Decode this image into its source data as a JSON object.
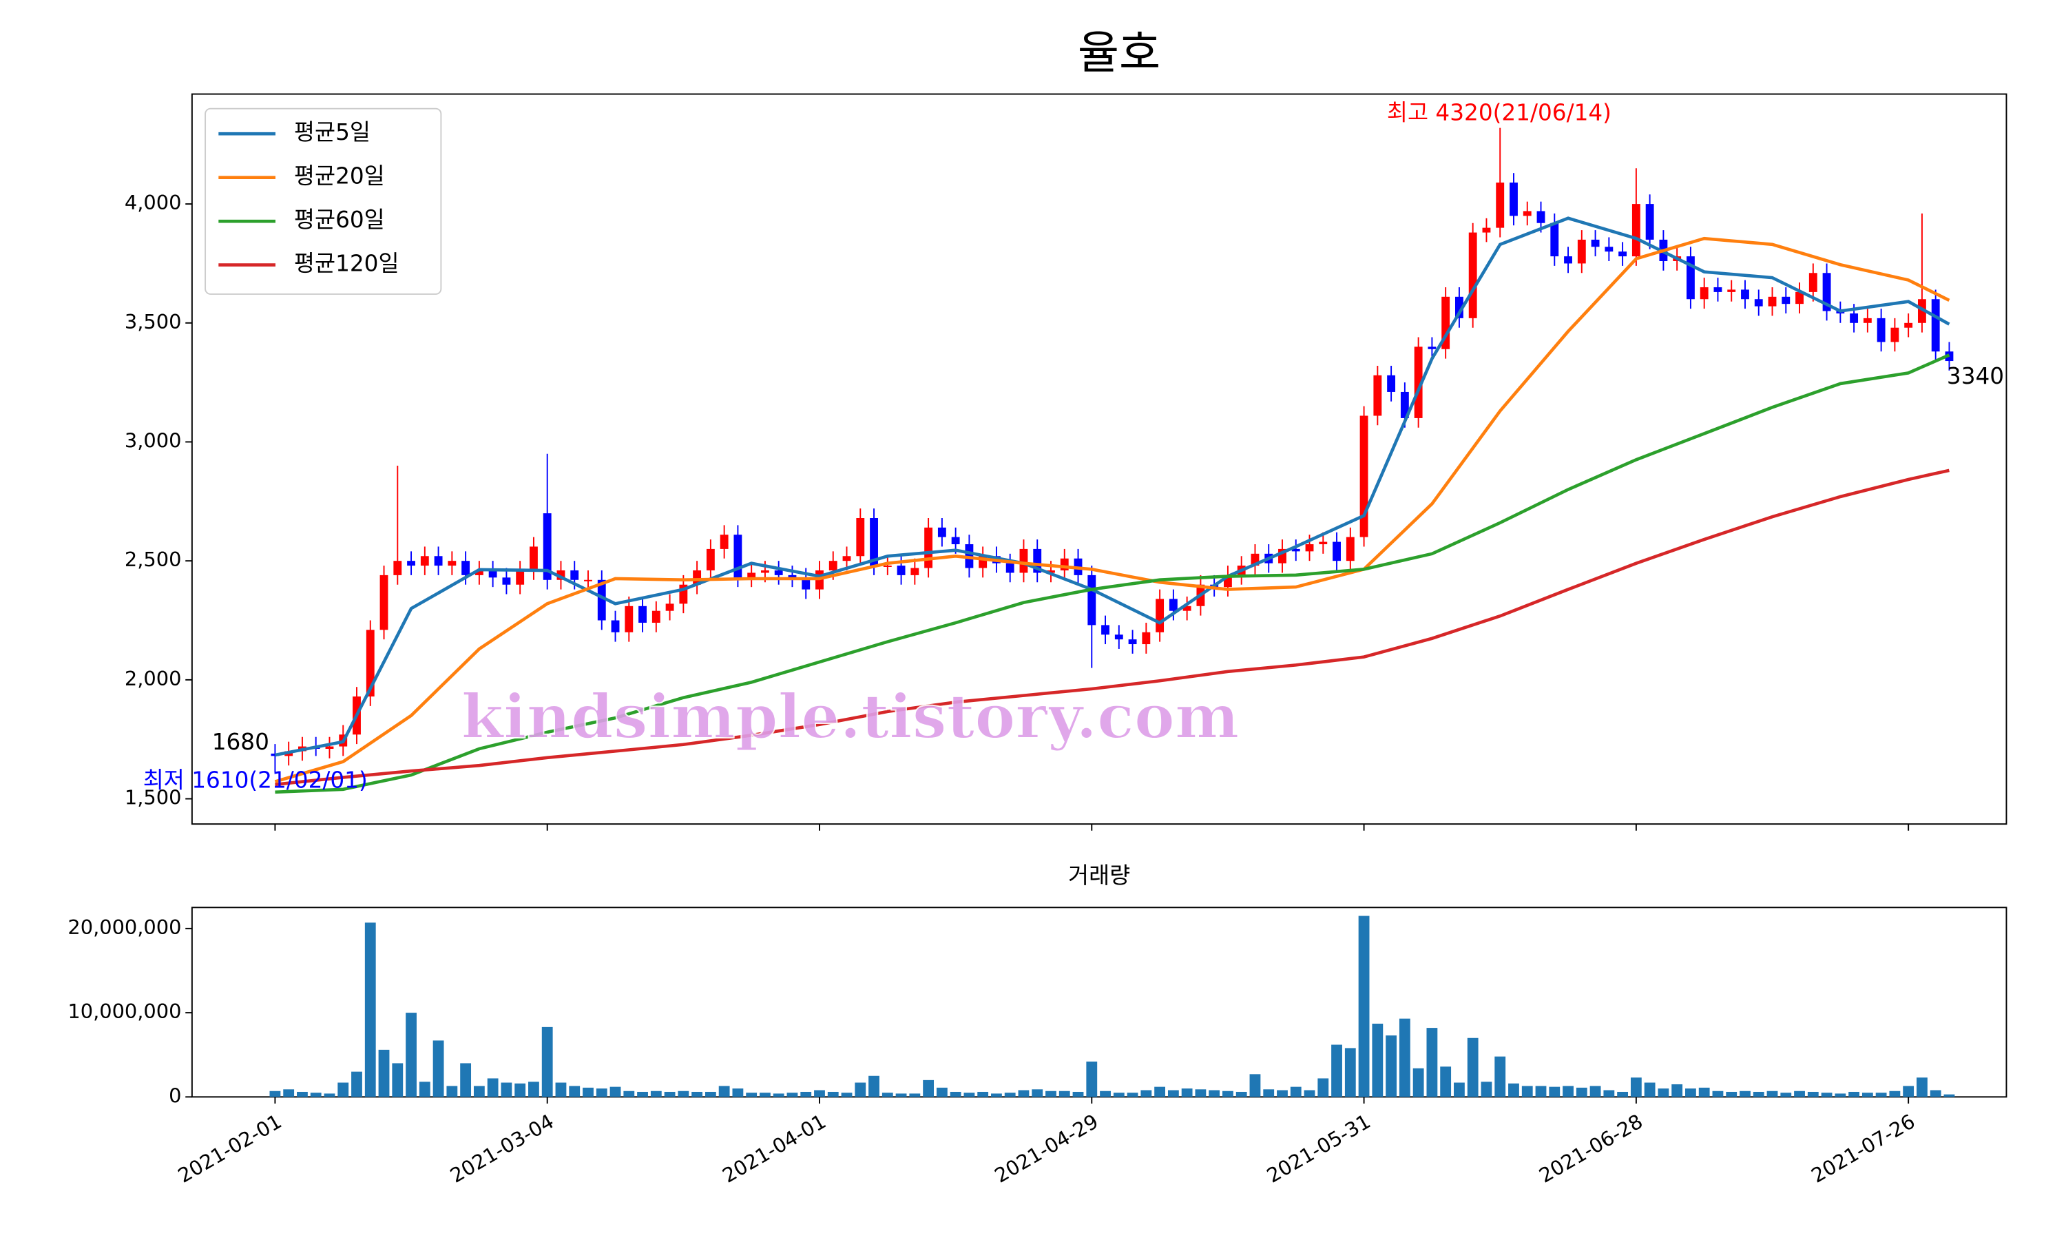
{
  "chart_data": [
    {
      "type": "candlestick",
      "title": "율호",
      "ylim": [
        1394,
        4462
      ],
      "xlim": [
        -6.1,
        127.2
      ],
      "yticks": [
        {
          "value": 1500,
          "label": "1,500"
        },
        {
          "value": 2000,
          "label": "2,000"
        },
        {
          "value": 2500,
          "label": "2,500"
        },
        {
          "value": 3000,
          "label": "3,000"
        },
        {
          "value": 3500,
          "label": "3,500"
        },
        {
          "value": 4000,
          "label": "4,000"
        }
      ],
      "up_color": "#ff0000",
      "down_color": "#0000ff",
      "legend": "upper left",
      "open": [
        1690,
        1680,
        1700,
        1720,
        1710,
        1720,
        1770,
        1930,
        2210,
        2440,
        2500,
        2480,
        2520,
        2480,
        2500,
        2440,
        2460,
        2430,
        2400,
        2460,
        2700,
        2420,
        2460,
        2420,
        2420,
        2250,
        2200,
        2310,
        2240,
        2290,
        2320,
        2400,
        2460,
        2550,
        2610,
        2430,
        2450,
        2460,
        2440,
        2430,
        2380,
        2460,
        2500,
        2520,
        2680,
        2480,
        2480,
        2440,
        2470,
        2640,
        2600,
        2570,
        2470,
        2520,
        2490,
        2450,
        2550,
        2450,
        2460,
        2510,
        2440,
        2230,
        2190,
        2170,
        2150,
        2200,
        2340,
        2290,
        2310,
        2400,
        2390,
        2440,
        2480,
        2530,
        2490,
        2550,
        2540,
        2570,
        2580,
        2500,
        2600,
        3110,
        3280,
        3210,
        3100,
        3400,
        3390,
        3610,
        3520,
        3880,
        3900,
        4090,
        3950,
        3970,
        3920,
        3780,
        3750,
        3850,
        3820,
        3800,
        3780,
        4000,
        3850,
        3760,
        3780,
        3600,
        3650,
        3630,
        3640,
        3600,
        3570,
        3610,
        3580,
        3630,
        3710,
        3550,
        3540,
        3500,
        3520,
        3420,
        3480,
        3500,
        3600,
        3380
      ],
      "high": [
        1730,
        1740,
        1760,
        1760,
        1760,
        1810,
        1970,
        2250,
        2480,
        2900,
        2540,
        2560,
        2560,
        2540,
        2540,
        2500,
        2500,
        2470,
        2500,
        2600,
        2950,
        2500,
        2500,
        2460,
        2460,
        2290,
        2350,
        2350,
        2330,
        2360,
        2440,
        2500,
        2590,
        2650,
        2650,
        2490,
        2500,
        2500,
        2480,
        2470,
        2500,
        2540,
        2560,
        2720,
        2720,
        2520,
        2520,
        2510,
        2680,
        2680,
        2640,
        2610,
        2560,
        2560,
        2530,
        2590,
        2590,
        2500,
        2550,
        2550,
        2480,
        2270,
        2230,
        2210,
        2240,
        2380,
        2380,
        2350,
        2440,
        2440,
        2480,
        2520,
        2570,
        2570,
        2590,
        2590,
        2610,
        2620,
        2620,
        2640,
        3150,
        3320,
        3320,
        3250,
        3440,
        3440,
        3650,
        3650,
        3920,
        3940,
        4320,
        4130,
        4010,
        4010,
        3960,
        3820,
        3890,
        3890,
        3860,
        3840,
        4150,
        4040,
        3890,
        3820,
        3820,
        3690,
        3690,
        3680,
        3680,
        3640,
        3650,
        3650,
        3670,
        3750,
        3750,
        3590,
        3580,
        3560,
        3560,
        3520,
        3540,
        3960,
        3640,
        3420
      ],
      "low": [
        1610,
        1640,
        1660,
        1680,
        1670,
        1680,
        1730,
        1890,
        2170,
        2400,
        2440,
        2440,
        2440,
        2440,
        2400,
        2400,
        2390,
        2360,
        2360,
        2420,
        2380,
        2380,
        2380,
        2380,
        2210,
        2160,
        2160,
        2200,
        2200,
        2250,
        2280,
        2360,
        2420,
        2510,
        2390,
        2390,
        2410,
        2400,
        2390,
        2340,
        2340,
        2420,
        2460,
        2480,
        2440,
        2440,
        2400,
        2400,
        2430,
        2560,
        2530,
        2430,
        2430,
        2450,
        2410,
        2410,
        2410,
        2410,
        2420,
        2400,
        2050,
        2150,
        2130,
        2110,
        2110,
        2160,
        2250,
        2250,
        2270,
        2350,
        2350,
        2400,
        2440,
        2450,
        2450,
        2500,
        2500,
        2530,
        2460,
        2460,
        2560,
        3070,
        3170,
        3060,
        3060,
        3350,
        3350,
        3480,
        3480,
        3840,
        3860,
        3910,
        3910,
        3880,
        3740,
        3710,
        3710,
        3780,
        3760,
        3740,
        3740,
        3810,
        3720,
        3720,
        3560,
        3560,
        3590,
        3590,
        3560,
        3530,
        3530,
        3540,
        3540,
        3590,
        3510,
        3500,
        3460,
        3460,
        3380,
        3380,
        3440,
        3460,
        3340,
        3300
      ],
      "close": [
        1680,
        1700,
        1720,
        1710,
        1720,
        1770,
        1930,
        2210,
        2440,
        2500,
        2480,
        2520,
        2480,
        2500,
        2440,
        2460,
        2430,
        2400,
        2460,
        2560,
        2420,
        2460,
        2420,
        2420,
        2250,
        2200,
        2310,
        2240,
        2290,
        2320,
        2400,
        2460,
        2550,
        2610,
        2430,
        2450,
        2460,
        2440,
        2430,
        2380,
        2460,
        2500,
        2520,
        2680,
        2480,
        2480,
        2440,
        2470,
        2640,
        2600,
        2570,
        2470,
        2520,
        2490,
        2450,
        2550,
        2450,
        2460,
        2510,
        2440,
        2230,
        2190,
        2170,
        2150,
        2200,
        2340,
        2290,
        2310,
        2400,
        2390,
        2440,
        2480,
        2530,
        2490,
        2550,
        2540,
        2570,
        2580,
        2500,
        2600,
        3110,
        3280,
        3210,
        3100,
        3400,
        3390,
        3610,
        3520,
        3880,
        3900,
        4090,
        3950,
        3970,
        3920,
        3780,
        3750,
        3850,
        3820,
        3800,
        3780,
        4000,
        3850,
        3760,
        3780,
        3600,
        3650,
        3630,
        3640,
        3600,
        3570,
        3610,
        3580,
        3630,
        3710,
        3550,
        3540,
        3500,
        3520,
        3420,
        3480,
        3500,
        3600,
        3380,
        3340
      ],
      "series": [
        {
          "name": "평균5일",
          "color": "#1f77b4",
          "x": [
            0,
            5,
            10,
            15,
            20,
            25,
            30,
            35,
            40,
            45,
            50,
            55,
            60,
            65,
            70,
            75,
            80,
            85,
            90,
            95,
            100,
            105,
            110,
            115,
            120,
            123
          ],
          "values": [
            1684,
            1740,
            2300,
            2463,
            2460,
            2320,
            2380,
            2490,
            2435,
            2520,
            2545,
            2490,
            2380,
            2240,
            2435,
            2560,
            2690,
            3350,
            3830,
            3940,
            3855,
            3715,
            3690,
            3550,
            3590,
            3495
          ]
        },
        {
          "name": "평균20일",
          "color": "#ff7f0e",
          "x": [
            0,
            5,
            10,
            15,
            20,
            25,
            30,
            35,
            40,
            45,
            50,
            55,
            60,
            65,
            70,
            75,
            80,
            85,
            90,
            95,
            100,
            105,
            110,
            115,
            120,
            123
          ],
          "values": [
            1572,
            1656,
            1850,
            2130,
            2320,
            2425,
            2420,
            2425,
            2425,
            2490,
            2520,
            2490,
            2465,
            2410,
            2380,
            2390,
            2465,
            2740,
            3130,
            3465,
            3770,
            3855,
            3830,
            3745,
            3680,
            3595
          ]
        },
        {
          "name": "평균60일",
          "color": "#2ca02c",
          "x": [
            0,
            5,
            10,
            15,
            20,
            25,
            30,
            35,
            40,
            45,
            50,
            55,
            60,
            65,
            70,
            75,
            80,
            85,
            90,
            95,
            100,
            105,
            110,
            115,
            120,
            123
          ],
          "values": [
            1528,
            1540,
            1600,
            1710,
            1780,
            1840,
            1925,
            1990,
            2075,
            2160,
            2240,
            2325,
            2380,
            2420,
            2435,
            2440,
            2465,
            2530,
            2660,
            2800,
            2925,
            3035,
            3145,
            3245,
            3290,
            3365
          ]
        },
        {
          "name": "평균120일",
          "color": "#d62728",
          "x": [
            0,
            5,
            10,
            15,
            20,
            25,
            30,
            35,
            40,
            45,
            50,
            55,
            60,
            65,
            70,
            75,
            80,
            85,
            90,
            95,
            100,
            105,
            110,
            115,
            120,
            123
          ],
          "values": [
            1560,
            1590,
            1617,
            1640,
            1673,
            1700,
            1728,
            1767,
            1812,
            1867,
            1906,
            1934,
            1962,
            1996,
            2035,
            2062,
            2096,
            2174,
            2268,
            2380,
            2490,
            2590,
            2685,
            2770,
            2842,
            2880
          ]
        }
      ],
      "annotations": [
        {
          "text": "최고 4320(21/06/14)",
          "color": "#ff0000"
        },
        {
          "text": "최저 1610(21/02/01)",
          "color": "#0000ff"
        },
        {
          "text": "1680",
          "color": "#000000"
        },
        {
          "text": "3340",
          "color": "#000000"
        }
      ],
      "watermark": "kindsimple.tistory.com"
    },
    {
      "type": "bar",
      "title": "거래량",
      "color": "#1f77b4",
      "xlim": [
        -6.1,
        127.2
      ],
      "ylim": [
        0,
        22500000
      ],
      "yticks": [
        0,
        {
          "value": 10000000,
          "label": "10,000,000"
        },
        {
          "value": 20000000,
          "label": "20,000,000"
        }
      ],
      "xticks": [
        {
          "value": 0,
          "label": "2021-02-01"
        },
        {
          "value": 20,
          "label": "2021-03-04"
        },
        {
          "value": 40,
          "label": "2021-04-01"
        },
        {
          "value": 60,
          "label": "2021-04-29"
        },
        {
          "value": 80,
          "label": "2021-05-31"
        },
        {
          "value": 100,
          "label": "2021-06-28"
        },
        {
          "value": 120,
          "label": "2021-07-26"
        }
      ],
      "values": [
        700000,
        900000,
        600000,
        500000,
        400000,
        1700000,
        3000000,
        20700000,
        5600000,
        4000000,
        10000000,
        1800000,
        6700000,
        1300000,
        4000000,
        1300000,
        2200000,
        1700000,
        1600000,
        1800000,
        8300000,
        1700000,
        1300000,
        1100000,
        1000000,
        1200000,
        700000,
        600000,
        700000,
        600000,
        700000,
        600000,
        600000,
        1300000,
        1000000,
        500000,
        500000,
        400000,
        500000,
        600000,
        800000,
        600000,
        500000,
        1700000,
        2500000,
        500000,
        400000,
        400000,
        2000000,
        1100000,
        600000,
        500000,
        600000,
        400000,
        500000,
        800000,
        900000,
        700000,
        700000,
        600000,
        4200000,
        700000,
        500000,
        500000,
        800000,
        1200000,
        800000,
        1000000,
        900000,
        800000,
        700000,
        600000,
        2700000,
        900000,
        800000,
        1200000,
        800000,
        2200000,
        6200000,
        5800000,
        21500000,
        8700000,
        7300000,
        9300000,
        3400000,
        8200000,
        3600000,
        1700000,
        7000000,
        1800000,
        4800000,
        1600000,
        1300000,
        1300000,
        1200000,
        1300000,
        1100000,
        1300000,
        800000,
        600000,
        2300000,
        1700000,
        1000000,
        1500000,
        1000000,
        1100000,
        700000,
        600000,
        700000,
        600000,
        700000,
        500000,
        700000,
        600000,
        500000,
        400000,
        600000,
        500000,
        500000,
        700000,
        1300000,
        2300000,
        800000,
        300000
      ]
    }
  ]
}
